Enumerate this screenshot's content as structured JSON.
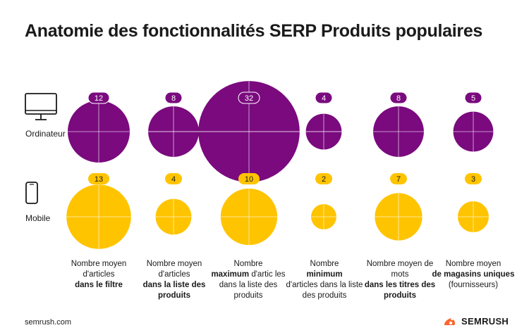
{
  "title": "Anatomie des fonctionnalités SERP Produits populaires",
  "rows": {
    "desktop_label": "Ordinateur",
    "mobile_label": "Mobile"
  },
  "columns": [
    {
      "pre": "Nombre moyen d'articles",
      "bold": "dans le filtre",
      "post": ""
    },
    {
      "pre": "Nombre moyen d'articles",
      "bold": "dans la liste des produits",
      "post": ""
    },
    {
      "pre": "Nombre",
      "bold": "maximum",
      "post": "d'artic les dans la liste des produits"
    },
    {
      "pre": "Nombre",
      "bold": "minimum",
      "post": "d'articles dans la liste des produits"
    },
    {
      "pre": "Nombre moyen de mots",
      "bold": "dans les titres des produits",
      "post": ""
    },
    {
      "pre": "Nombre moyen",
      "bold": "de magasins uniques",
      "post": "(fournisseurs)"
    }
  ],
  "footer": {
    "source": "semrush.com",
    "brand": "SEMRUSH"
  },
  "colors": {
    "desktop": "#7a0a7e",
    "mobile": "#ffc400",
    "desktop_overlay": "#5e0b5e",
    "mobile_overlay": "#c58a4d"
  },
  "icons": {
    "desktop": "desktop-monitor-icon",
    "mobile": "smartphone-icon",
    "brand": "semrush-flame-icon"
  },
  "chart_data": {
    "type": "bubble",
    "categories": [
      "Nombre moyen d'articles dans le filtre",
      "Nombre moyen d'articles dans la liste des produits",
      "Nombre maximum d'articles dans la liste des produits",
      "Nombre minimum d'articles dans la liste des produits",
      "Nombre moyen de mots dans les titres des produits",
      "Nombre moyen de magasins uniques (fournisseurs)"
    ],
    "series": [
      {
        "name": "Ordinateur",
        "values": [
          12,
          8,
          32,
          4,
          8,
          5
        ]
      },
      {
        "name": "Mobile",
        "values": [
          13,
          4,
          10,
          2,
          7,
          3
        ]
      }
    ]
  }
}
